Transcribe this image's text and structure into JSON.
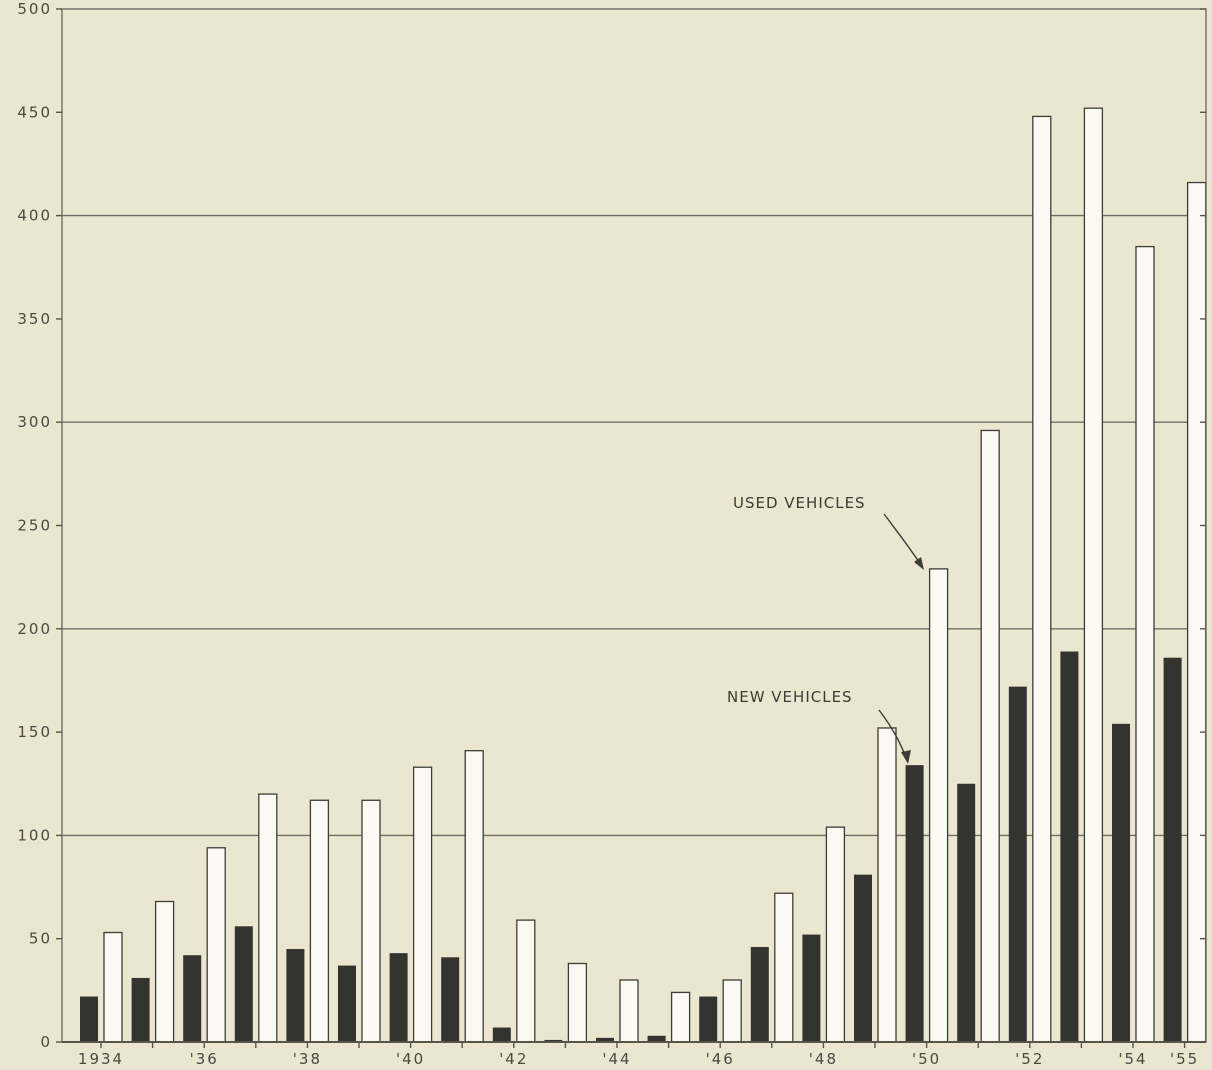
{
  "chart_data": {
    "type": "bar",
    "title": "",
    "xlabel": "",
    "ylabel": "",
    "ylim": [
      0,
      500
    ],
    "yticks": [
      0,
      50,
      100,
      150,
      200,
      250,
      300,
      350,
      400,
      450,
      500
    ],
    "ytick_labels": [
      "0",
      "50",
      "100",
      "150",
      "200",
      "250",
      "300",
      "350",
      "400",
      "450",
      "500"
    ],
    "gridlines": [
      100,
      200,
      300,
      400
    ],
    "categories": [
      "1934",
      "1935",
      "1936",
      "1937",
      "1938",
      "1939",
      "1940",
      "1941",
      "1942",
      "1943",
      "1944",
      "1945",
      "1946",
      "1947",
      "1948",
      "1949",
      "1950",
      "1951",
      "1952",
      "1953",
      "1954",
      "1955"
    ],
    "xtick_labels": [
      "1934",
      "",
      "'36",
      "",
      "'38",
      "",
      "'40",
      "",
      "'42",
      "",
      "'44",
      "",
      "'46",
      "",
      "'48",
      "",
      "'50",
      "",
      "'52",
      "",
      "'54",
      "'55"
    ],
    "series": [
      {
        "name": "NEW VEHICLES",
        "color": "#333330",
        "values": [
          22,
          31,
          42,
          56,
          45,
          37,
          43,
          41,
          7,
          1,
          2,
          3,
          22,
          46,
          52,
          81,
          134,
          125,
          172,
          189,
          154,
          186
        ]
      },
      {
        "name": "USED VEHICLES",
        "color": "#fbfaf2",
        "values": [
          53,
          68,
          94,
          120,
          117,
          117,
          133,
          141,
          59,
          38,
          30,
          24,
          30,
          72,
          104,
          152,
          229,
          296,
          448,
          452,
          385,
          416
        ]
      }
    ],
    "annotations": [
      {
        "text": "USED VEHICLES",
        "points_to_series": "USED VEHICLES",
        "category": "1950"
      },
      {
        "text": "NEW VEHICLES",
        "points_to_series": "NEW VEHICLES",
        "category": "1950"
      }
    ]
  }
}
